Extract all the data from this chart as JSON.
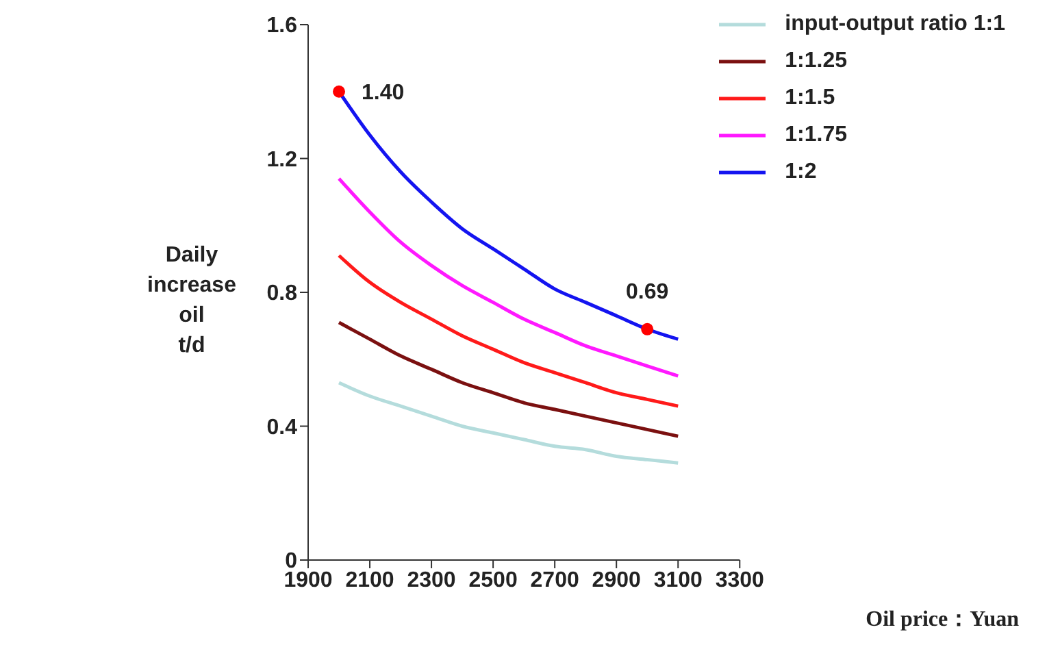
{
  "chart_data": {
    "type": "line",
    "xlabel": "Oil price：Yuan",
    "ylabel": "Daily\nincrease\noil\nt/d",
    "x": [
      2000,
      2100,
      2200,
      2300,
      2400,
      2500,
      2600,
      2700,
      2800,
      2900,
      3000,
      3100
    ],
    "series": [
      {
        "name": "input-output ratio 1:1",
        "color": "#b4dcdc",
        "values": [
          0.53,
          0.49,
          0.46,
          0.43,
          0.4,
          0.38,
          0.36,
          0.34,
          0.33,
          0.31,
          0.3,
          0.29
        ]
      },
      {
        "name": "1:1.25",
        "color": "#7b1010",
        "values": [
          0.71,
          0.66,
          0.61,
          0.57,
          0.53,
          0.5,
          0.47,
          0.45,
          0.43,
          0.41,
          0.39,
          0.37
        ]
      },
      {
        "name": "1:1.5",
        "color": "#ff1a1a",
        "values": [
          0.91,
          0.83,
          0.77,
          0.72,
          0.67,
          0.63,
          0.59,
          0.56,
          0.53,
          0.5,
          0.48,
          0.46
        ]
      },
      {
        "name": "1:1.75",
        "color": "#ff19ff",
        "values": [
          1.14,
          1.04,
          0.95,
          0.88,
          0.82,
          0.77,
          0.72,
          0.68,
          0.64,
          0.61,
          0.58,
          0.55
        ]
      },
      {
        "name": "1:2",
        "color": "#1414f0",
        "values": [
          1.4,
          1.27,
          1.16,
          1.07,
          0.99,
          0.93,
          0.87,
          0.81,
          0.77,
          0.73,
          0.69,
          0.66
        ]
      }
    ],
    "annotations": [
      {
        "text": "1.40",
        "x": 2000,
        "y": 1.4
      },
      {
        "text": "0.69",
        "x": 3000,
        "y": 0.69
      }
    ],
    "xlim": [
      1900,
      3300
    ],
    "xticks": [
      1900,
      2100,
      2300,
      2500,
      2700,
      2900,
      3100,
      3300
    ],
    "ylim": [
      0,
      1.6
    ],
    "yticks": [
      0,
      0.4,
      0.8,
      1.2,
      1.6
    ],
    "grid": false,
    "legend": "top right",
    "marker": "none",
    "line_style": "solid"
  }
}
